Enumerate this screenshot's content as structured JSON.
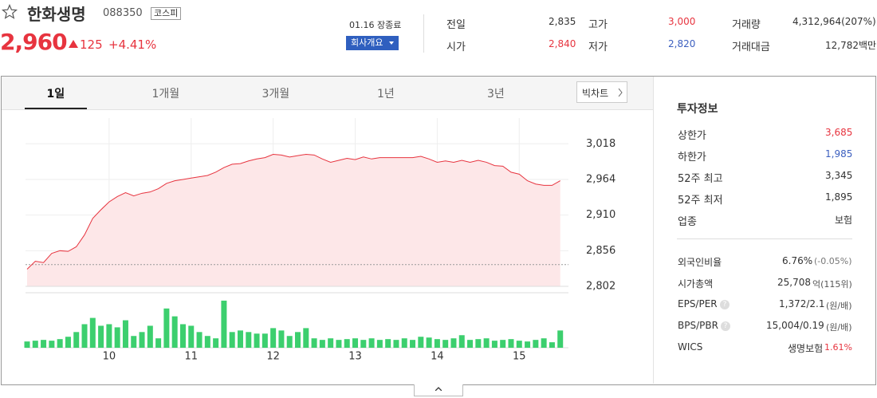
{
  "header": {
    "name": "한화생명",
    "code": "088350",
    "market": "코스피",
    "price": "2,960",
    "change": "125",
    "change_pct": "+4.41%",
    "status": "01.16 장종료",
    "company_button": "회사개요",
    "stats": [
      {
        "label": "전일",
        "value": "2,835",
        "color": "#333333"
      },
      {
        "label": "고가",
        "value": "3,000",
        "color": "#e7343f"
      },
      {
        "label": "거래량",
        "value": "4,312,964(207%)",
        "color": "#333333"
      },
      {
        "label": "시가",
        "value": "2,840",
        "color": "#e7343f"
      },
      {
        "label": "저가",
        "value": "2,820",
        "color": "#3c5fbf"
      },
      {
        "label": "거래대금",
        "value": "12,782백만",
        "color": "#333333"
      }
    ]
  },
  "tabs": [
    "1일",
    "1개월",
    "3개월",
    "1년",
    "3년"
  ],
  "big_chart": "빅차트",
  "panel": {
    "title": "투자정보",
    "rows": [
      {
        "label": "상한가",
        "value": "3,685",
        "color": "#e7343f"
      },
      {
        "label": "하한가",
        "value": "1,985",
        "color": "#3c5fbf"
      },
      {
        "label": "52주 최고",
        "value": "3,345",
        "color": "#333333"
      },
      {
        "label": "52주 최저",
        "value": "1,895",
        "color": "#333333"
      },
      {
        "label": "업종",
        "value": "보험",
        "color": "#333333"
      }
    ],
    "rows2": [
      {
        "label": "외국인비율",
        "value": "6.76%",
        "sub": "(-0.05%)",
        "sub_color": "#777777"
      },
      {
        "label": "시가총액",
        "value": "25,708",
        "sub": "억(115위)",
        "sub_color": "#555555"
      },
      {
        "label": "EPS/PER",
        "help": "?",
        "value": "1,372/2.1",
        "sub": "(원/배)",
        "sub_color": "#555555"
      },
      {
        "label": "BPS/PBR",
        "help": "?",
        "value": "15,004/0.19",
        "sub": "(원/배)",
        "sub_color": "#555555"
      },
      {
        "label": "WICS",
        "value": "생명보험",
        "sub": "1.61%",
        "sub_color": "#e7343f"
      }
    ]
  },
  "chart_data": [
    {
      "type": "line",
      "color": "#e7343f",
      "fill": "#fde7e8",
      "reference_line": 2835,
      "x": [
        9,
        9.1,
        9.2,
        9.3,
        9.4,
        9.5,
        9.6,
        9.7,
        9.8,
        9.9,
        10,
        10.1,
        10.2,
        10.3,
        10.4,
        10.5,
        10.6,
        10.7,
        10.8,
        10.9,
        11,
        11.1,
        11.2,
        11.3,
        11.4,
        11.5,
        11.6,
        11.7,
        11.8,
        11.9,
        12,
        12.1,
        12.2,
        12.3,
        12.4,
        12.5,
        12.6,
        12.7,
        12.8,
        12.9,
        13,
        13.1,
        13.2,
        13.3,
        13.4,
        13.5,
        13.6,
        13.7,
        13.8,
        13.9,
        14,
        14.1,
        14.2,
        14.3,
        14.4,
        14.5,
        14.6,
        14.7,
        14.8,
        14.9,
        15,
        15.1,
        15.2,
        15.3,
        15.4,
        15.5
      ],
      "values": [
        2828,
        2840,
        2838,
        2852,
        2856,
        2855,
        2862,
        2880,
        2905,
        2918,
        2930,
        2938,
        2944,
        2939,
        2943,
        2945,
        2950,
        2958,
        2962,
        2964,
        2966,
        2968,
        2970,
        2975,
        2982,
        2987,
        2988,
        2992,
        2995,
        2997,
        3002,
        3001,
        2998,
        3000,
        3002,
        3001,
        2995,
        2990,
        2993,
        2996,
        2994,
        2998,
        2995,
        2997,
        2997,
        2997,
        2997,
        2997,
        2999,
        2995,
        2990,
        2992,
        2990,
        2993,
        2990,
        2993,
        2990,
        2985,
        2984,
        2975,
        2972,
        2962,
        2957,
        2955,
        2955,
        2962
      ],
      "xlim": [
        9,
        15.6
      ],
      "xticks": [
        10,
        11,
        12,
        13,
        14,
        15
      ],
      "ylim": [
        2802,
        3057
      ],
      "yticks": [
        {
          "value": 2802,
          "label": "2,802"
        },
        {
          "value": 2856,
          "label": "2,856"
        },
        {
          "value": 2910,
          "label": "2,910"
        },
        {
          "value": 2964,
          "label": "2,964"
        },
        {
          "value": 3018,
          "label": "3,018"
        }
      ]
    },
    {
      "type": "bar",
      "color": "#3ccf6e",
      "x": [
        9,
        9.1,
        9.2,
        9.3,
        9.4,
        9.5,
        9.6,
        9.7,
        9.8,
        9.9,
        10,
        10.1,
        10.2,
        10.3,
        10.4,
        10.5,
        10.6,
        10.7,
        10.8,
        10.9,
        11,
        11.1,
        11.2,
        11.3,
        11.4,
        11.5,
        11.6,
        11.7,
        11.8,
        11.9,
        12,
        12.1,
        12.2,
        12.3,
        12.4,
        12.5,
        12.6,
        12.7,
        12.8,
        12.9,
        13,
        13.1,
        13.2,
        13.3,
        13.4,
        13.5,
        13.6,
        13.7,
        13.8,
        13.9,
        14,
        14.1,
        14.2,
        14.3,
        14.4,
        14.5,
        14.6,
        14.7,
        14.8,
        14.9,
        15,
        15.1,
        15.2,
        15.3,
        15.4,
        15.5
      ],
      "values": [
        8,
        9,
        10,
        9,
        11,
        14,
        20,
        30,
        38,
        28,
        30,
        26,
        35,
        15,
        20,
        28,
        12,
        50,
        40,
        30,
        28,
        20,
        15,
        12,
        60,
        20,
        22,
        20,
        18,
        18,
        25,
        22,
        15,
        20,
        25,
        12,
        10,
        12,
        10,
        11,
        12,
        10,
        12,
        10,
        11,
        10,
        12,
        10,
        14,
        13,
        11,
        10,
        12,
        16,
        10,
        11,
        12,
        9,
        10,
        11,
        9,
        8,
        10,
        12,
        7,
        22
      ],
      "xlim": [
        9,
        15.6
      ],
      "ylim": [
        0,
        65
      ]
    }
  ]
}
